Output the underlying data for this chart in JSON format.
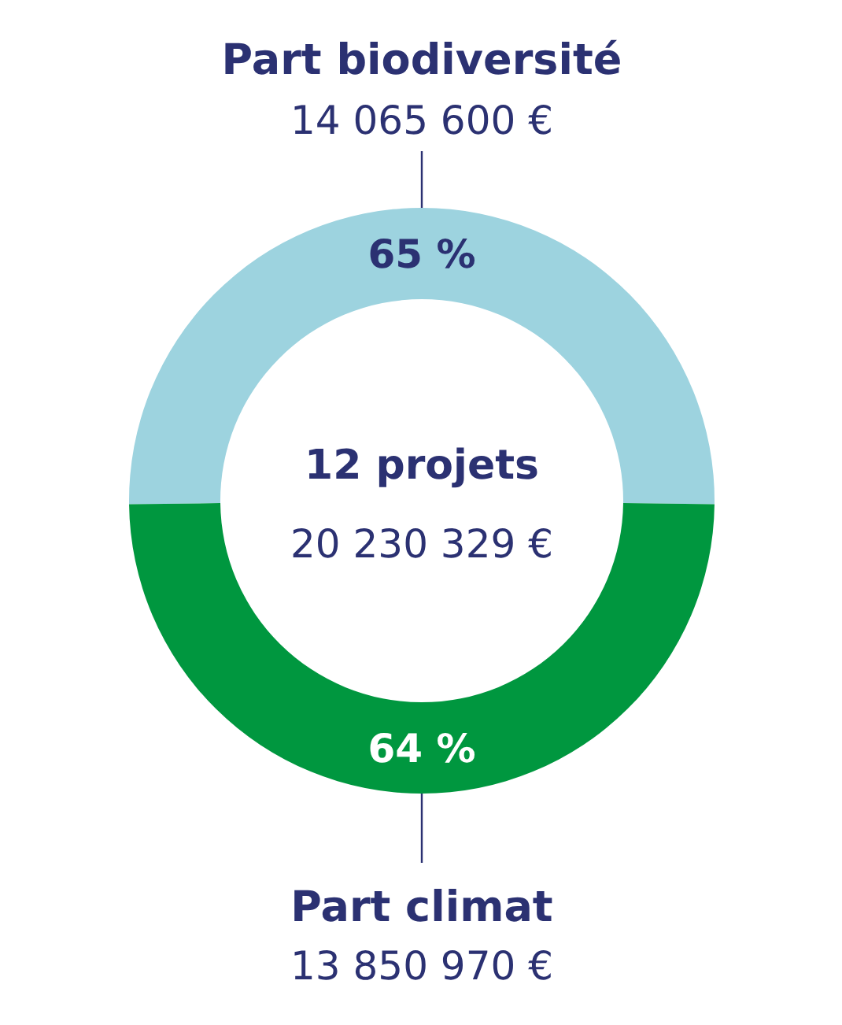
{
  "chart_data": {
    "type": "donut",
    "categories": [
      "Part biodiversité",
      "Part climat"
    ],
    "values": [
      65,
      64
    ],
    "colors": [
      "#9dd3df",
      "#00973f"
    ],
    "value_labels": [
      "65 %",
      "64 %"
    ],
    "annotations": [
      "14 065 600 €",
      "13 850 970 €",
      "12 projets",
      "20 230 329 €"
    ]
  }
}
